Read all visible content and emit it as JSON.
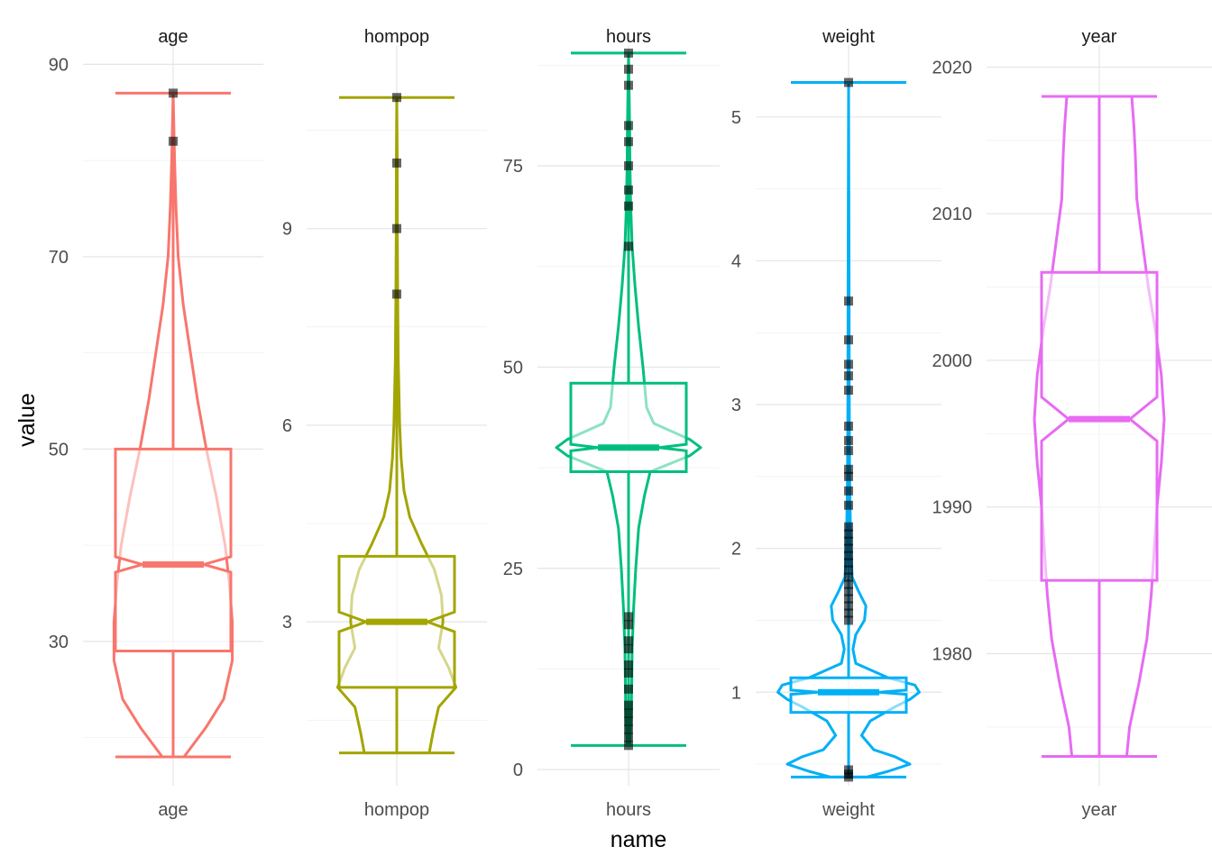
{
  "chart_data": {
    "type": "violin-boxplot",
    "xlabel": "name",
    "ylabel": "value",
    "colors": {
      "age": "#F8766D",
      "hompop": "#A3A500",
      "hours": "#00BF7D",
      "weight": "#00B0F6",
      "year": "#E76BF3",
      "outlier": "#000000"
    },
    "panels": [
      {
        "name": "age",
        "ylim": [
          15,
          92
        ],
        "yticks": [
          30,
          50,
          70,
          90
        ],
        "yticks_minor": [
          20,
          40,
          60,
          80
        ],
        "box": {
          "min": 18,
          "q1": 29,
          "median": 38,
          "q3": 50,
          "max": 87,
          "notch_low": 37.2,
          "notch_high": 38.8
        },
        "violin": [
          [
            18,
            0.15
          ],
          [
            21,
            0.45
          ],
          [
            24,
            0.7
          ],
          [
            28,
            0.82
          ],
          [
            32,
            0.82
          ],
          [
            36,
            0.78
          ],
          [
            40,
            0.72
          ],
          [
            45,
            0.6
          ],
          [
            50,
            0.46
          ],
          [
            55,
            0.34
          ],
          [
            60,
            0.24
          ],
          [
            65,
            0.14
          ],
          [
            70,
            0.07
          ],
          [
            75,
            0.04
          ],
          [
            80,
            0.02
          ],
          [
            87,
            0.0
          ]
        ],
        "outliers": [
          82,
          87
        ]
      },
      {
        "name": "hompop",
        "ylim": [
          0.5,
          11.8
        ],
        "yticks": [
          3,
          6,
          9
        ],
        "yticks_minor": [
          1.5,
          4.5,
          7.5,
          10.5
        ],
        "box": {
          "min": 1,
          "q1": 2,
          "median": 3,
          "q3": 4,
          "max": 11,
          "notch_low": 2.85,
          "notch_high": 3.15
        },
        "violin": [
          [
            1,
            0.45
          ],
          [
            1.3,
            0.5
          ],
          [
            1.7,
            0.58
          ],
          [
            2,
            0.82
          ],
          [
            2.3,
            0.72
          ],
          [
            2.6,
            0.58
          ],
          [
            3,
            0.64
          ],
          [
            3.4,
            0.62
          ],
          [
            3.8,
            0.52
          ],
          [
            4.2,
            0.34
          ],
          [
            4.6,
            0.18
          ],
          [
            5,
            0.1
          ],
          [
            5.5,
            0.06
          ],
          [
            6,
            0.04
          ],
          [
            7,
            0.02
          ],
          [
            8,
            0.012
          ],
          [
            9,
            0.008
          ],
          [
            10,
            0.006
          ],
          [
            11,
            0.0
          ]
        ],
        "outliers": [
          8,
          9,
          10,
          11
        ]
      },
      {
        "name": "hours",
        "ylim": [
          -2,
          90
        ],
        "yticks": [
          0,
          25,
          50,
          75
        ],
        "yticks_minor": [
          12.5,
          37.5,
          62.5,
          87.5
        ],
        "box": {
          "min": 3,
          "q1": 37,
          "median": 40,
          "q3": 48,
          "max": 89,
          "notch_low": 39.6,
          "notch_high": 40.4
        },
        "violin": [
          [
            3,
            0.02
          ],
          [
            8,
            0.04
          ],
          [
            15,
            0.05
          ],
          [
            20,
            0.07
          ],
          [
            25,
            0.1
          ],
          [
            30,
            0.14
          ],
          [
            34,
            0.22
          ],
          [
            37,
            0.3
          ],
          [
            39,
            0.85
          ],
          [
            40,
            1.0
          ],
          [
            41,
            0.85
          ],
          [
            43,
            0.35
          ],
          [
            45,
            0.25
          ],
          [
            48,
            0.22
          ],
          [
            50,
            0.2
          ],
          [
            55,
            0.14
          ],
          [
            60,
            0.09
          ],
          [
            65,
            0.05
          ],
          [
            70,
            0.03
          ],
          [
            75,
            0.02
          ],
          [
            80,
            0.015
          ],
          [
            89,
            0.0
          ]
        ],
        "outliers": [
          3,
          4,
          5,
          6,
          7,
          8,
          10,
          12,
          13,
          15,
          16,
          18,
          19,
          65,
          70,
          72,
          75,
          78,
          80,
          85,
          87,
          89
        ]
      },
      {
        "name": "weight",
        "ylim": [
          0.35,
          5.5
        ],
        "yticks": [
          1,
          2,
          3,
          4,
          5
        ],
        "yticks_minor": [
          0.5,
          1.5,
          2.5,
          3.5,
          4.5
        ],
        "box": {
          "min": 0.41,
          "q1": 0.86,
          "median": 1.0,
          "q3": 1.1,
          "max": 5.24,
          "notch_low": 0.985,
          "notch_high": 1.015
        },
        "violin": [
          [
            0.41,
            0.25
          ],
          [
            0.45,
            0.55
          ],
          [
            0.5,
            0.85
          ],
          [
            0.55,
            0.65
          ],
          [
            0.6,
            0.35
          ],
          [
            0.7,
            0.18
          ],
          [
            0.8,
            0.3
          ],
          [
            0.9,
            0.65
          ],
          [
            0.95,
            0.85
          ],
          [
            1.0,
            0.98
          ],
          [
            1.05,
            0.92
          ],
          [
            1.1,
            0.55
          ],
          [
            1.2,
            0.1
          ],
          [
            1.3,
            0.06
          ],
          [
            1.4,
            0.1
          ],
          [
            1.5,
            0.22
          ],
          [
            1.6,
            0.24
          ],
          [
            1.7,
            0.14
          ],
          [
            1.8,
            0.05
          ],
          [
            2.0,
            0.03
          ],
          [
            2.5,
            0.015
          ],
          [
            3.0,
            0.01
          ],
          [
            4.0,
            0.006
          ],
          [
            5.24,
            0.0
          ]
        ],
        "outliers": [
          0.41,
          0.43,
          0.46,
          1.5,
          1.55,
          1.6,
          1.65,
          1.7,
          1.75,
          1.8,
          1.85,
          1.9,
          1.95,
          2.0,
          2.05,
          2.1,
          2.15,
          2.3,
          2.4,
          2.5,
          2.55,
          2.68,
          2.75,
          2.85,
          3.1,
          3.2,
          3.28,
          3.45,
          3.72,
          5.24
        ]
      },
      {
        "name": "year",
        "ylim": [
          1971,
          2021.5
        ],
        "yticks": [
          1980,
          1990,
          2000,
          2010,
          2020
        ],
        "yticks_minor": [
          1975,
          1985,
          1995,
          2005,
          2015
        ],
        "box": {
          "min": 1973,
          "q1": 1985,
          "median": 1996,
          "q3": 2006,
          "max": 2018,
          "notch_low": 1994.5,
          "notch_high": 1997.5
        },
        "violin": [
          [
            1973,
            0.38
          ],
          [
            1975,
            0.42
          ],
          [
            1978,
            0.55
          ],
          [
            1981,
            0.66
          ],
          [
            1984,
            0.72
          ],
          [
            1987,
            0.76
          ],
          [
            1990,
            0.8
          ],
          [
            1993,
            0.86
          ],
          [
            1996,
            0.9
          ],
          [
            1999,
            0.86
          ],
          [
            2002,
            0.78
          ],
          [
            2005,
            0.68
          ],
          [
            2008,
            0.6
          ],
          [
            2011,
            0.52
          ],
          [
            2014,
            0.5
          ],
          [
            2016,
            0.48
          ],
          [
            2018,
            0.45
          ]
        ],
        "outliers": []
      }
    ]
  }
}
